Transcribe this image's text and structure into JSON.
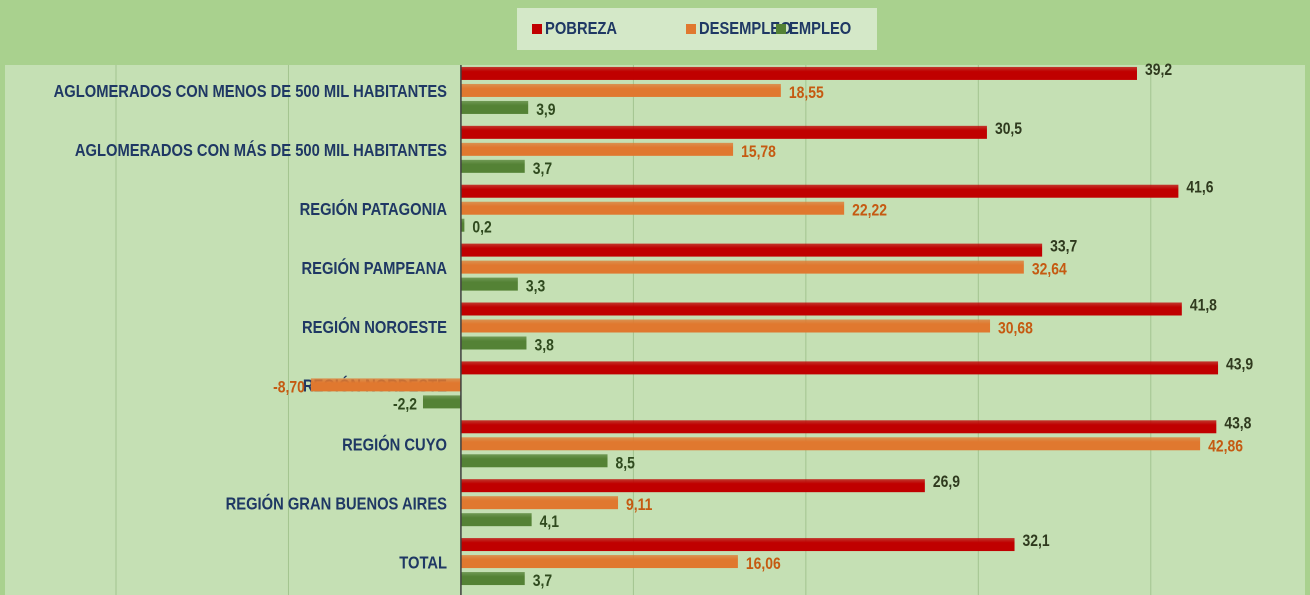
{
  "chart_data": {
    "type": "hbar",
    "categories": [
      "AGLOMERADOS CON MENOS DE 500 MIL HABITANTES",
      "AGLOMERADOS CON MÁS DE 500 MIL HABITANTES",
      "REGIÓN PATAGONIA",
      "REGIÓN PAMPEANA",
      "REGIÓN NOROESTE",
      "REGIÓN NORDESTE",
      "REGIÓN CUYO",
      "REGIÓN GRAN BUENOS AIRES",
      "TOTAL"
    ],
    "series": [
      {
        "name": "POBREZA",
        "color": "#c00000",
        "label_color": "#2f3a1e",
        "values": [
          39.2,
          30.5,
          41.6,
          33.7,
          41.8,
          43.9,
          43.8,
          26.9,
          32.1
        ],
        "value_labels": [
          "39,2",
          "30,5",
          "41,6",
          "33,7",
          "41,8",
          "43,9",
          "43,8",
          "26,9",
          "32,1"
        ]
      },
      {
        "name": "DESEMPLEO",
        "color": "#e0782f",
        "label_color": "#c55a11",
        "values": [
          18.55,
          15.78,
          22.22,
          32.64,
          30.68,
          -8.7,
          42.86,
          9.11,
          16.06
        ],
        "value_labels": [
          "18,55",
          "15,78",
          "22,22",
          "32,64",
          "30,68",
          "-8,70",
          "42,86",
          "9,11",
          "16,06"
        ]
      },
      {
        "name": "EMPLEO",
        "color": "#548235",
        "label_color": "#2f4a1e",
        "values": [
          3.9,
          3.7,
          0.2,
          3.3,
          3.8,
          -2.2,
          8.5,
          4.1,
          3.7
        ],
        "value_labels": [
          "3,9",
          "3,7",
          "0,2",
          "3,3",
          "3,8",
          "-2,2",
          "8,5",
          "4,1",
          "3,7"
        ]
      }
    ],
    "xlim": [
      -20,
      49
    ],
    "xticks": [
      -20,
      -10,
      0,
      10,
      20,
      30,
      40
    ],
    "grid": true
  }
}
